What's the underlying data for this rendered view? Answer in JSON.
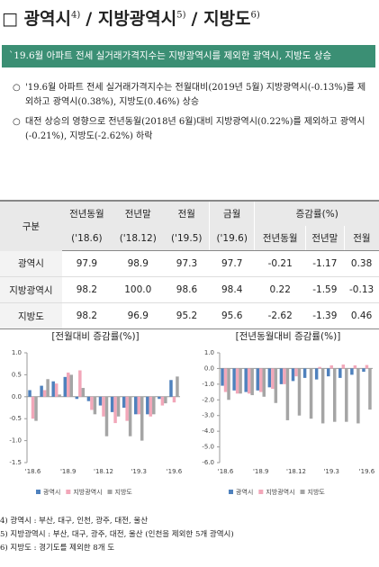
{
  "header": {
    "box": "□",
    "parts": [
      {
        "text": "광역시",
        "sup": "4)"
      },
      {
        "text": "/ 지방광역시",
        "sup": "5)"
      },
      {
        "text": "/ 지방도",
        "sup": "6)"
      }
    ]
  },
  "summary": "`19.6월 아파트 전세 실거래가격지수는 지방광역시를 제외한 광역시, 지방도 상승",
  "bullets": [
    "'19.6월 아파트 전세 실거래가격지수는 전월대비(2019년 5월) 지방광역시(-0.13%)를 제외하고 광역시(0.38%), 지방도(0.46%) 상승",
    "대전 상승의 영향으로 전년동월(2018년 6월)대비 지방광역시(0.22%)를 제외하고 광역시(-0.21%), 지방도(-2.62%) 하락"
  ],
  "table": {
    "head1": [
      "구분",
      "전년동월",
      "전년말",
      "전월",
      "금월",
      "증감률(%)"
    ],
    "head2": [
      "('18.6)",
      "('18.12)",
      "('19.5)",
      "('19.6)",
      "전년동월",
      "전년말",
      "전월"
    ],
    "rows": [
      [
        "광역시",
        "97.9",
        "98.9",
        "97.3",
        "97.7",
        "-0.21",
        "-1.17",
        "0.38"
      ],
      [
        "지방광역시",
        "98.2",
        "100.0",
        "98.6",
        "98.4",
        "0.22",
        "-1.59",
        "-0.13"
      ],
      [
        "지방도",
        "98.2",
        "96.9",
        "95.2",
        "95.6",
        "-2.62",
        "-1.39",
        "0.46"
      ]
    ]
  },
  "chart_data": [
    {
      "type": "bar",
      "title": "[전월대비 증감률(%)]",
      "categories": [
        "'18.6",
        null,
        null,
        "'18.9",
        null,
        null,
        "'18.12",
        null,
        null,
        "'19.3",
        null,
        null,
        "'19.6"
      ],
      "series": [
        {
          "name": "광역시",
          "color": "#4f81bd",
          "values": [
            0.15,
            0.25,
            0.35,
            0.45,
            -0.05,
            -0.1,
            -0.2,
            -0.35,
            -0.25,
            -0.4,
            -0.4,
            -0.05,
            0.38
          ]
        },
        {
          "name": "지방광역시",
          "color": "#f2a7b9",
          "values": [
            -0.5,
            0.15,
            0.3,
            0.55,
            0.6,
            -0.3,
            -0.45,
            -0.6,
            -0.55,
            -0.4,
            -0.45,
            -0.2,
            -0.13
          ]
        },
        {
          "name": "지방도",
          "color": "#a5a5a5",
          "values": [
            -0.55,
            0.4,
            0.05,
            0.5,
            0.2,
            -0.4,
            -0.9,
            -0.45,
            -0.9,
            -1.0,
            -0.4,
            -0.15,
            0.46
          ]
        }
      ],
      "ylim": [
        -1.5,
        1.0
      ],
      "yticks": [
        -1.5,
        {
          "value": -1,
          "label": "-1.0"
        },
        -0.5,
        {
          "value": 0,
          "label": "0.0"
        },
        0.5,
        {
          "value": 1,
          "label": "1.0"
        }
      ]
    },
    {
      "type": "bar",
      "title": "[전년동월대비 증감률(%)]",
      "categories": [
        "'18.6",
        null,
        null,
        "'18.9",
        null,
        null,
        "'18.12",
        null,
        null,
        "'19.3",
        null,
        null,
        "'19.6"
      ],
      "series": [
        {
          "name": "광역시",
          "color": "#4f81bd",
          "values": [
            -1.1,
            -1.4,
            -1.5,
            -1.4,
            -1.2,
            -1.0,
            -0.8,
            -0.6,
            -0.7,
            -0.5,
            -0.6,
            -0.4,
            -0.21
          ]
        },
        {
          "name": "지방광역시",
          "color": "#f2a7b9",
          "values": [
            -1.5,
            -1.6,
            -1.6,
            -1.5,
            -1.3,
            -1.0,
            -0.5,
            0.0,
            0.1,
            0.2,
            0.25,
            0.2,
            0.22
          ]
        },
        {
          "name": "지방도",
          "color": "#a5a5a5",
          "values": [
            -2.0,
            -1.6,
            -1.7,
            -1.8,
            -2.2,
            -3.3,
            -3.0,
            -3.2,
            -3.5,
            -3.4,
            -3.4,
            -3.5,
            -2.62
          ]
        }
      ],
      "ylim": [
        -6.0,
        1.0
      ],
      "yticks": [
        {
          "value": -6,
          "label": "-6.0"
        },
        {
          "value": -5,
          "label": "-5.0"
        },
        {
          "value": -4,
          "label": "-4.0"
        },
        {
          "value": -3,
          "label": "-3.0"
        },
        {
          "value": -2,
          "label": "-2.0"
        },
        {
          "value": -1,
          "label": "-1.0"
        },
        {
          "value": 0,
          "label": "0.0"
        },
        {
          "value": 1,
          "label": "1.0"
        }
      ]
    }
  ],
  "footnotes": [
    "4) 광역시 : 부산, 대구, 인천, 광주, 대전, 울산",
    "5) 지방광역시 : 부산, 대구, 광주, 대전, 울산 (인천을 제외한 5개 광역시)",
    "6) 지방도 : 경기도를 제외한 8개 도"
  ]
}
